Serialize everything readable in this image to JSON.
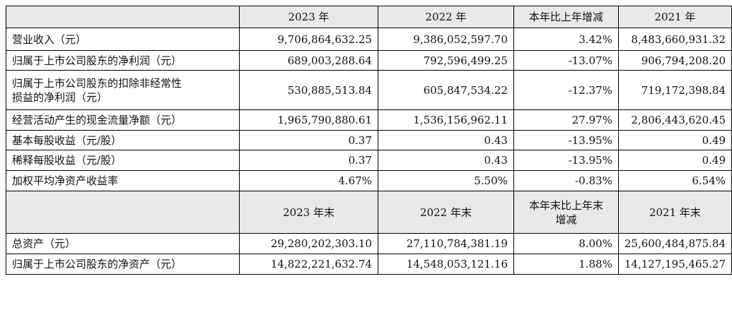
{
  "header1": [
    "2023 年",
    "2022 年",
    "本年比上年增减",
    "2021 年"
  ],
  "rows1": [
    {
      "label": "营业收入（元）",
      "v2023": "9,706,864,632.25",
      "v2022": "9,386,052,597.70",
      "change": "3.42%",
      "v2021": "8,483,660,931.32"
    },
    {
      "label": "归属于上市公司股东的净利润（元）",
      "v2023": "689,003,288.64",
      "v2022": "792,596,499.25",
      "change": "-13.07%",
      "v2021": "906,794,208.20"
    },
    {
      "label_line1": "归属于上市公司股东的扣除非经常性",
      "label_line2": "损益的净利润（元）",
      "v2023": "530,885,513.84",
      "v2022": "605,847,534.22",
      "change": "-12.37%",
      "v2021": "719,172,398.84"
    },
    {
      "label": "经营活动产生的现金流量净额（元）",
      "v2023": "1,965,790,880.61",
      "v2022": "1,536,156,962.11",
      "change": "27.97%",
      "v2021": "2,806,443,620.45"
    },
    {
      "label": "基本每股收益（元/股）",
      "v2023": "0.37",
      "v2022": "0.43",
      "change": "-13.95%",
      "v2021": "0.49"
    },
    {
      "label": "稀释每股收益（元/股）",
      "v2023": "0.37",
      "v2022": "0.43",
      "change": "-13.95%",
      "v2021": "0.49"
    },
    {
      "label": "加权平均净资产收益率",
      "v2023": "4.67%",
      "v2022": "5.50%",
      "change": "-0.83%",
      "v2021": "6.54%"
    }
  ],
  "header2": {
    "c2023": "2023 年末",
    "c2022": "2022 年末",
    "change_line1": "本年末比上年末",
    "change_line2": "增减",
    "c2021": "2021 年末"
  },
  "rows2": [
    {
      "label": "总资产（元）",
      "v2023": "29,280,202,303.10",
      "v2022": "27,110,784,381.19",
      "change": "8.00%",
      "v2021": "25,600,484,875.84"
    },
    {
      "label": "归属于上市公司股东的净资产（元）",
      "v2023": "14,822,221,632.74",
      "v2022": "14,548,053,121.16",
      "change": "1.88%",
      "v2021": "14,127,195,465.27"
    }
  ]
}
